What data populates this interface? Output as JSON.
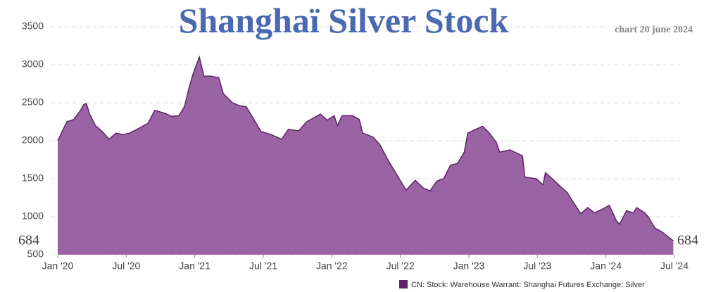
{
  "chart_data": {
    "type": "area",
    "title": "Shanghaï  Silver Stock",
    "subtitle": "chart 20 june 2024",
    "annotations": [
      "684",
      "684"
    ],
    "x": [
      0,
      0.8,
      1.4,
      2.0,
      2.3,
      2.5,
      2.8,
      3.3,
      3.9,
      4.5,
      5.1,
      5.7,
      6.3,
      7.3,
      7.9,
      8.5,
      9.4,
      10.0,
      10.6,
      11.1,
      11.5,
      11.9,
      12.4,
      12.8,
      13.4,
      14.1,
      14.5,
      15.3,
      15.9,
      16.5,
      17.1,
      17.8,
      18.7,
      19.6,
      20.2,
      21.1,
      21.8,
      22.4,
      23.0,
      23.6,
      24.2,
      24.5,
      24.9,
      25.8,
      26.4,
      26.7,
      27.6,
      28.2,
      28.9,
      29.5,
      30.1,
      30.5,
      31.3,
      32.0,
      32.6,
      33.2,
      33.8,
      34.4,
      35.0,
      35.6,
      35.9,
      36.6,
      37.2,
      37.8,
      38.4,
      38.7,
      39.6,
      40.3,
      40.7,
      40.9,
      41.9,
      42.5,
      42.7,
      43.3,
      44.0,
      44.6,
      45.2,
      45.8,
      46.4,
      47.0,
      47.7,
      48.3,
      48.9,
      49.2,
      49.8,
      50.4,
      50.7,
      51.4,
      51.7,
      52.3,
      52.9,
      53.5,
      53.9
    ],
    "series": [
      {
        "name": "CN: Stock: Warehouse Warrant: Shanghai Futures Exchange: Silver",
        "color": "#9a64a4",
        "line_color": "#5e2266",
        "values": [
          2000,
          2250,
          2280,
          2400,
          2480,
          2490,
          2350,
          2200,
          2120,
          2020,
          2100,
          2080,
          2100,
          2180,
          2230,
          2400,
          2360,
          2320,
          2330,
          2450,
          2700,
          2900,
          3100,
          2850,
          2850,
          2830,
          2620,
          2500,
          2460,
          2450,
          2300,
          2120,
          2080,
          2020,
          2150,
          2130,
          2250,
          2300,
          2350,
          2270,
          2330,
          2200,
          2330,
          2330,
          2280,
          2100,
          2050,
          1950,
          1750,
          1600,
          1450,
          1350,
          1480,
          1380,
          1340,
          1470,
          1500,
          1680,
          1700,
          1850,
          2100,
          2150,
          2190,
          2100,
          1980,
          1850,
          1880,
          1830,
          1800,
          1520,
          1500,
          1420,
          1580,
          1500,
          1400,
          1320,
          1180,
          1040,
          1120,
          1050,
          1100,
          1150,
          950,
          900,
          1080,
          1050,
          1120,
          1050,
          1000,
          850,
          800,
          730,
          684
        ]
      }
    ],
    "xlim": [
      0,
      54
    ],
    "xticks": [
      {
        "value": 0,
        "label": "Jan '20"
      },
      {
        "value": 6,
        "label": "Jul '20"
      },
      {
        "value": 12,
        "label": "Jan '21"
      },
      {
        "value": 18,
        "label": "Jul '21"
      },
      {
        "value": 24,
        "label": "Jan '22"
      },
      {
        "value": 30,
        "label": "Jul '22"
      },
      {
        "value": 36,
        "label": "Jan '23"
      },
      {
        "value": 42,
        "label": "Jul '23"
      },
      {
        "value": 48,
        "label": "Jan '24"
      },
      {
        "value": 54,
        "label": "Jul '24"
      }
    ],
    "ylim": [
      500,
      3500
    ],
    "yticks": [
      500,
      1000,
      1500,
      2000,
      2500,
      3000,
      3500
    ],
    "grid": true
  }
}
